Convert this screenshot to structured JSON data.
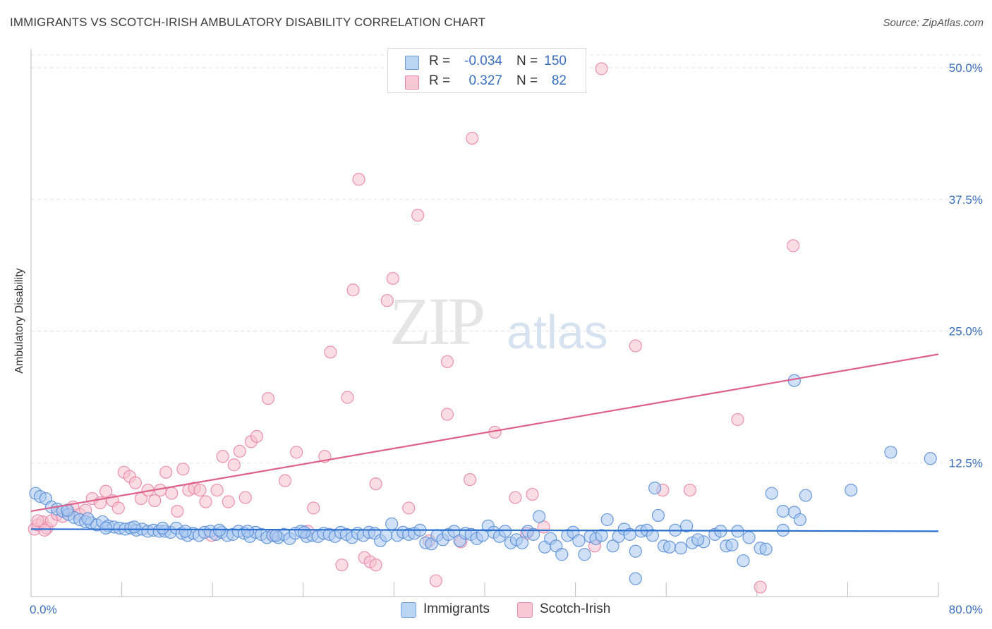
{
  "title": "IMMIGRANTS VS SCOTCH-IRISH AMBULATORY DISABILITY CORRELATION CHART",
  "source": "Source: ZipAtlas.com",
  "watermark": {
    "zip": "ZIP",
    "atlas": "atlas"
  },
  "legend": {
    "r_label": "R =",
    "n_label": "N =",
    "rows": [
      {
        "name": "Immigrants",
        "r": "-0.034",
        "n": "150"
      },
      {
        "name": "Scotch-Irish",
        "r": "0.327",
        "n": "82"
      }
    ]
  },
  "chart_data": {
    "type": "scatter",
    "title": "IMMIGRANTS VS SCOTCH-IRISH AMBULATORY DISABILITY CORRELATION CHART",
    "xlabel": "",
    "ylabel": "Ambulatory Disability",
    "xlim": [
      0,
      80
    ],
    "ylim": [
      0,
      52
    ],
    "x_tick_labels": [
      {
        "value": 0,
        "label": "0.0%"
      },
      {
        "value": 80,
        "label": "80.0%"
      }
    ],
    "y_tick_labels": [
      {
        "value": 12.5,
        "label": "12.5%"
      },
      {
        "value": 25.0,
        "label": "25.0%"
      },
      {
        "value": 37.5,
        "label": "37.5%"
      },
      {
        "value": 50.0,
        "label": "50.0%"
      }
    ],
    "colors": {
      "immigrants_fill": "#a9c8f0",
      "immigrants_stroke": "#5b8fd6",
      "immigrants_line": "#2a6fd0",
      "scotch_fill": "#f6bfd0",
      "scotch_stroke": "#e886a6",
      "scotch_line": "#e0608c",
      "axis_text": "#3a6fbd",
      "grid": "#e3e3e3"
    },
    "series": [
      {
        "name": "Immigrants",
        "trend": {
          "x": [
            0,
            80
          ],
          "y": [
            6.2,
            6.0
          ]
        },
        "points": [
          [
            0.4,
            9.6
          ],
          [
            0.8,
            9.3
          ],
          [
            1.3,
            9.1
          ],
          [
            1.8,
            8.3
          ],
          [
            2.3,
            8.1
          ],
          [
            2.8,
            7.9
          ],
          [
            3.3,
            7.6
          ],
          [
            3.8,
            7.3
          ],
          [
            4.3,
            7.1
          ],
          [
            4.8,
            6.9
          ],
          [
            5.3,
            6.8
          ],
          [
            5.8,
            6.6
          ],
          [
            6.3,
            6.9
          ],
          [
            6.8,
            6.5
          ],
          [
            7.3,
            6.4
          ],
          [
            7.8,
            6.3
          ],
          [
            8.3,
            6.2
          ],
          [
            8.8,
            6.3
          ],
          [
            9.3,
            6.1
          ],
          [
            9.8,
            6.2
          ],
          [
            10.3,
            6.0
          ],
          [
            10.8,
            6.1
          ],
          [
            11.3,
            6.0
          ],
          [
            11.8,
            6.0
          ],
          [
            12.3,
            5.9
          ],
          [
            12.8,
            6.3
          ],
          [
            13.3,
            5.8
          ],
          [
            13.8,
            5.6
          ],
          [
            14.3,
            5.8
          ],
          [
            14.8,
            5.6
          ],
          [
            15.3,
            5.9
          ],
          [
            15.8,
            6.0
          ],
          [
            16.3,
            5.7
          ],
          [
            16.8,
            5.9
          ],
          [
            17.3,
            5.6
          ],
          [
            17.8,
            5.7
          ],
          [
            18.3,
            6.0
          ],
          [
            18.8,
            5.8
          ],
          [
            19.3,
            5.5
          ],
          [
            19.8,
            5.9
          ],
          [
            20.3,
            5.7
          ],
          [
            20.8,
            5.4
          ],
          [
            21.3,
            5.6
          ],
          [
            21.8,
            5.4
          ],
          [
            22.3,
            5.7
          ],
          [
            22.8,
            5.3
          ],
          [
            23.3,
            5.8
          ],
          [
            23.8,
            6.0
          ],
          [
            24.3,
            5.5
          ],
          [
            24.8,
            5.6
          ],
          [
            25.3,
            5.5
          ],
          [
            25.8,
            5.8
          ],
          [
            26.3,
            5.7
          ],
          [
            26.8,
            5.5
          ],
          [
            27.3,
            5.9
          ],
          [
            27.8,
            5.7
          ],
          [
            28.3,
            5.4
          ],
          [
            28.8,
            5.8
          ],
          [
            29.3,
            5.6
          ],
          [
            29.8,
            5.9
          ],
          [
            30.3,
            5.8
          ],
          [
            30.8,
            5.1
          ],
          [
            31.3,
            5.6
          ],
          [
            31.8,
            6.7
          ],
          [
            32.3,
            5.6
          ],
          [
            32.8,
            5.9
          ],
          [
            33.3,
            5.7
          ],
          [
            33.8,
            5.8
          ],
          [
            34.3,
            6.1
          ],
          [
            34.8,
            4.9
          ],
          [
            35.3,
            4.8
          ],
          [
            35.8,
            5.6
          ],
          [
            36.3,
            5.2
          ],
          [
            36.8,
            5.7
          ],
          [
            37.3,
            6.0
          ],
          [
            37.8,
            5.1
          ],
          [
            38.3,
            5.8
          ],
          [
            38.8,
            5.7
          ],
          [
            39.3,
            5.3
          ],
          [
            39.8,
            5.6
          ],
          [
            40.3,
            6.5
          ],
          [
            40.8,
            5.9
          ],
          [
            41.3,
            5.5
          ],
          [
            41.8,
            6.0
          ],
          [
            42.3,
            4.9
          ],
          [
            42.8,
            5.2
          ],
          [
            43.3,
            4.9
          ],
          [
            43.8,
            6.0
          ],
          [
            44.3,
            5.7
          ],
          [
            44.8,
            7.4
          ],
          [
            45.3,
            4.5
          ],
          [
            45.8,
            5.3
          ],
          [
            46.3,
            4.6
          ],
          [
            46.8,
            3.8
          ],
          [
            47.3,
            5.6
          ],
          [
            47.8,
            5.9
          ],
          [
            48.3,
            5.1
          ],
          [
            48.8,
            3.8
          ],
          [
            49.3,
            5.5
          ],
          [
            49.8,
            5.3
          ],
          [
            50.3,
            5.6
          ],
          [
            50.8,
            7.1
          ],
          [
            51.3,
            4.6
          ],
          [
            51.8,
            5.5
          ],
          [
            52.3,
            6.2
          ],
          [
            52.8,
            5.7
          ],
          [
            53.3,
            4.1
          ],
          [
            53.8,
            6.0
          ],
          [
            54.3,
            6.1
          ],
          [
            54.8,
            5.6
          ],
          [
            55.3,
            7.5
          ],
          [
            55.8,
            4.6
          ],
          [
            56.3,
            4.5
          ],
          [
            56.8,
            6.1
          ],
          [
            57.3,
            4.4
          ],
          [
            58.3,
            4.9
          ],
          [
            59.3,
            5.0
          ],
          [
            60.3,
            5.7
          ],
          [
            61.3,
            4.6
          ],
          [
            61.8,
            4.7
          ],
          [
            62.3,
            6.0
          ],
          [
            62.8,
            3.2
          ],
          [
            63.3,
            5.4
          ],
          [
            64.3,
            4.4
          ],
          [
            64.8,
            4.3
          ],
          [
            66.3,
            6.1
          ],
          [
            67.3,
            7.8
          ],
          [
            67.8,
            7.1
          ],
          [
            68.3,
            9.4
          ],
          [
            72.3,
            9.9
          ],
          [
            53.3,
            1.5
          ],
          [
            55.0,
            10.1
          ],
          [
            67.3,
            20.3
          ],
          [
            75.8,
            13.5
          ],
          [
            79.3,
            12.9
          ],
          [
            65.3,
            9.6
          ],
          [
            66.3,
            7.9
          ],
          [
            60.8,
            6.0
          ],
          [
            58.8,
            5.2
          ],
          [
            57.8,
            6.5
          ],
          [
            3.2,
            8.0
          ],
          [
            5.0,
            7.2
          ],
          [
            6.6,
            6.3
          ],
          [
            9.1,
            6.4
          ],
          [
            11.6,
            6.3
          ],
          [
            13.6,
            6.0
          ],
          [
            16.6,
            6.1
          ],
          [
            19.1,
            6.0
          ],
          [
            21.6,
            5.6
          ],
          [
            24.1,
            5.9
          ]
        ]
      },
      {
        "name": "Scotch-Irish",
        "trend": {
          "x": [
            0,
            80
          ],
          "y": [
            7.9,
            22.8
          ]
        },
        "points": [
          [
            0.3,
            6.2
          ],
          [
            0.6,
            6.6
          ],
          [
            1.0,
            6.9
          ],
          [
            1.4,
            6.3
          ],
          [
            1.8,
            7.0
          ],
          [
            2.3,
            7.6
          ],
          [
            2.8,
            7.4
          ],
          [
            3.3,
            7.9
          ],
          [
            3.7,
            8.3
          ],
          [
            4.3,
            7.6
          ],
          [
            4.8,
            8.0
          ],
          [
            5.4,
            9.1
          ],
          [
            6.1,
            8.7
          ],
          [
            6.6,
            9.8
          ],
          [
            7.2,
            8.9
          ],
          [
            7.7,
            8.2
          ],
          [
            8.2,
            11.6
          ],
          [
            8.7,
            11.2
          ],
          [
            9.2,
            10.6
          ],
          [
            9.7,
            9.1
          ],
          [
            10.3,
            9.9
          ],
          [
            10.9,
            8.9
          ],
          [
            11.4,
            9.9
          ],
          [
            11.9,
            11.6
          ],
          [
            12.4,
            9.6
          ],
          [
            12.9,
            7.9
          ],
          [
            13.4,
            11.9
          ],
          [
            13.9,
            9.9
          ],
          [
            14.4,
            10.1
          ],
          [
            14.9,
            9.9
          ],
          [
            15.4,
            8.8
          ],
          [
            15.9,
            5.6
          ],
          [
            16.4,
            9.9
          ],
          [
            16.9,
            13.1
          ],
          [
            17.4,
            8.8
          ],
          [
            17.9,
            12.3
          ],
          [
            18.4,
            13.6
          ],
          [
            18.9,
            9.2
          ],
          [
            19.4,
            14.5
          ],
          [
            19.9,
            15.0
          ],
          [
            20.9,
            18.6
          ],
          [
            21.4,
            5.6
          ],
          [
            22.4,
            10.8
          ],
          [
            23.4,
            13.5
          ],
          [
            24.4,
            6.0
          ],
          [
            24.9,
            8.2
          ],
          [
            25.9,
            13.1
          ],
          [
            26.4,
            23.0
          ],
          [
            27.4,
            2.8
          ],
          [
            27.9,
            18.7
          ],
          [
            28.4,
            28.9
          ],
          [
            29.4,
            3.5
          ],
          [
            28.9,
            39.4
          ],
          [
            29.9,
            3.1
          ],
          [
            30.4,
            2.8
          ],
          [
            30.4,
            10.5
          ],
          [
            31.4,
            27.9
          ],
          [
            31.9,
            30.0
          ],
          [
            33.3,
            8.2
          ],
          [
            34.1,
            36.0
          ],
          [
            35.1,
            5.1
          ],
          [
            35.7,
            1.3
          ],
          [
            36.7,
            17.1
          ],
          [
            36.7,
            22.1
          ],
          [
            37.9,
            5.0
          ],
          [
            38.7,
            10.9
          ],
          [
            38.9,
            43.3
          ],
          [
            40.9,
            15.4
          ],
          [
            42.7,
            9.2
          ],
          [
            43.7,
            5.8
          ],
          [
            44.2,
            9.5
          ],
          [
            45.2,
            6.4
          ],
          [
            49.7,
            4.6
          ],
          [
            50.3,
            49.9
          ],
          [
            53.3,
            23.6
          ],
          [
            55.7,
            9.9
          ],
          [
            58.1,
            9.9
          ],
          [
            62.3,
            16.6
          ],
          [
            64.3,
            0.7
          ],
          [
            67.2,
            33.1
          ],
          [
            0.6,
            7.0
          ],
          [
            1.2,
            6.1
          ]
        ]
      }
    ]
  }
}
